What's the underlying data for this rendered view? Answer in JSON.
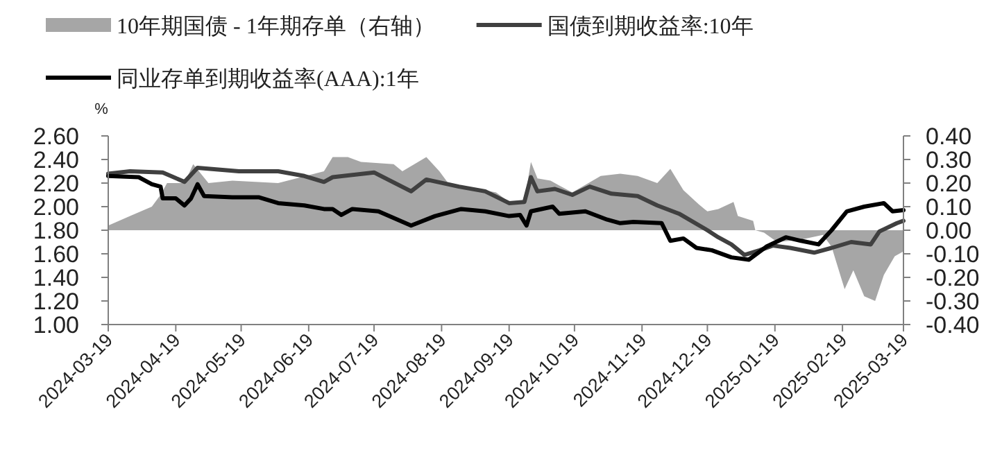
{
  "chart_data": {
    "type": "line",
    "ylabel": "%",
    "legend": "top",
    "xlim": [
      "2024-03-19",
      "2025-03-19"
    ],
    "xticks": [
      "2024-03-19",
      "2024-04-19",
      "2024-05-19",
      "2024-06-19",
      "2024-07-19",
      "2024-08-19",
      "2024-09-19",
      "2024-10-19",
      "2024-11-19",
      "2024-12-19",
      "2025-01-19",
      "2025-02-19",
      "2025-03-19"
    ],
    "ylim": [
      1.0,
      2.6
    ],
    "yticks": [
      {
        "value": 1.0,
        "label": "1.00"
      },
      {
        "value": 1.2,
        "label": "1.20"
      },
      {
        "value": 1.4,
        "label": "1.40"
      },
      {
        "value": 1.6,
        "label": "1.60"
      },
      {
        "value": 1.8,
        "label": "1.80"
      },
      {
        "value": 2.0,
        "label": "2.00"
      },
      {
        "value": 2.2,
        "label": "2.20"
      },
      {
        "value": 2.4,
        "label": "2.40"
      },
      {
        "value": 2.6,
        "label": "2.60"
      }
    ],
    "y2lim": [
      -0.4,
      0.4
    ],
    "y2ticks": [
      {
        "value": -0.4,
        "label": "-0.40"
      },
      {
        "value": -0.3,
        "label": "-0.30"
      },
      {
        "value": -0.2,
        "label": "-0.20"
      },
      {
        "value": -0.1,
        "label": "-0.10"
      },
      {
        "value": 0,
        "label": "0.00"
      },
      {
        "value": 0.1,
        "label": "0.10"
      },
      {
        "value": 0.2,
        "label": "0.20"
      },
      {
        "value": 0.3,
        "label": "0.30"
      },
      {
        "value": 0.4,
        "label": "0.40"
      }
    ],
    "series": [
      {
        "name": "10年期国债 - 1年期存单（右轴）",
        "type": "area",
        "axis": "y2",
        "color": "#a6a6a6",
        "x": [
          "2024-03-19",
          "2024-03-29",
          "2024-04-08",
          "2024-04-12",
          "2024-04-15",
          "2024-04-23",
          "2024-04-27",
          "2024-05-04",
          "2024-05-15",
          "2024-06-05",
          "2024-06-26",
          "2024-06-30",
          "2024-07-07",
          "2024-07-13",
          "2024-07-28",
          "2024-08-01",
          "2024-08-12",
          "2024-08-18",
          "2024-08-22",
          "2024-09-13",
          "2024-09-19",
          "2024-09-26",
          "2024-09-29",
          "2024-10-02",
          "2024-10-08",
          "2024-10-12",
          "2024-10-18",
          "2024-10-31",
          "2024-11-09",
          "2024-11-17",
          "2024-11-26",
          "2024-12-02",
          "2024-12-08",
          "2024-12-15",
          "2024-12-19",
          "2024-12-24",
          "2024-12-31",
          "2025-01-02",
          "2025-01-09",
          "2025-01-10",
          "2025-01-14",
          "2025-01-20",
          "2025-01-31",
          "2025-02-10",
          "2025-02-14",
          "2025-02-20",
          "2025-02-24",
          "2025-03-01",
          "2025-03-06",
          "2025-03-10",
          "2025-03-15",
          "2025-03-19"
        ],
        "values": [
          0.02,
          0.06,
          0.1,
          0.15,
          0.2,
          0.2,
          0.28,
          0.2,
          0.21,
          0.2,
          0.25,
          0.31,
          0.31,
          0.29,
          0.28,
          0.25,
          0.31,
          0.25,
          0.2,
          0.16,
          0.12,
          0.12,
          0.29,
          0.22,
          0.21,
          0.19,
          0.16,
          0.23,
          0.24,
          0.23,
          0.2,
          0.26,
          0.17,
          0.11,
          0.08,
          0.09,
          0.12,
          0.06,
          0.04,
          0.0,
          -0.01,
          -0.05,
          -0.04,
          -0.02,
          -0.07,
          -0.25,
          -0.17,
          -0.28,
          -0.3,
          -0.19,
          -0.11,
          -0.09
        ]
      },
      {
        "name": "国债到期收益率:10年",
        "color": "#404040",
        "x": [
          "2024-03-19",
          "2024-03-29",
          "2024-04-13",
          "2024-04-23",
          "2024-04-29",
          "2024-05-18",
          "2024-06-05",
          "2024-06-17",
          "2024-06-26",
          "2024-06-30",
          "2024-07-19",
          "2024-08-05",
          "2024-08-12",
          "2024-08-27",
          "2024-09-08",
          "2024-09-19",
          "2024-09-26",
          "2024-09-29",
          "2024-10-02",
          "2024-10-10",
          "2024-10-18",
          "2024-10-26",
          "2024-11-05",
          "2024-11-17",
          "2024-11-26",
          "2024-12-06",
          "2024-12-19",
          "2024-12-24",
          "2024-12-30",
          "2025-01-05",
          "2025-01-12",
          "2025-01-18",
          "2025-01-26",
          "2025-02-06",
          "2025-02-14",
          "2025-02-23",
          "2025-03-04",
          "2025-03-08",
          "2025-03-16",
          "2025-03-19"
        ],
        "values": [
          2.28,
          2.3,
          2.29,
          2.21,
          2.33,
          2.3,
          2.3,
          2.26,
          2.21,
          2.25,
          2.29,
          2.13,
          2.23,
          2.17,
          2.13,
          2.03,
          2.04,
          2.25,
          2.13,
          2.15,
          2.1,
          2.17,
          2.11,
          2.09,
          2.01,
          1.94,
          1.8,
          1.74,
          1.68,
          1.59,
          1.63,
          1.67,
          1.65,
          1.61,
          1.65,
          1.7,
          1.68,
          1.79,
          1.86,
          1.88
        ]
      },
      {
        "name": "同业存单到期收益率(AAA):1年",
        "color": "#000000",
        "x": [
          "2024-03-19",
          "2024-04-02",
          "2024-04-08",
          "2024-04-12",
          "2024-04-13",
          "2024-04-19",
          "2024-04-23",
          "2024-04-26",
          "2024-04-29",
          "2024-05-02",
          "2024-05-15",
          "2024-05-27",
          "2024-06-05",
          "2024-06-17",
          "2024-06-26",
          "2024-06-30",
          "2024-07-04",
          "2024-07-09",
          "2024-07-21",
          "2024-08-05",
          "2024-08-16",
          "2024-08-28",
          "2024-09-08",
          "2024-09-19",
          "2024-09-24",
          "2024-09-27",
          "2024-09-29",
          "2024-10-09",
          "2024-10-12",
          "2024-10-24",
          "2024-11-03",
          "2024-11-09",
          "2024-11-15",
          "2024-11-28",
          "2024-12-02",
          "2024-12-08",
          "2024-12-14",
          "2024-12-21",
          "2024-12-30",
          "2025-01-07",
          "2025-01-15",
          "2025-01-24",
          "2025-01-31",
          "2025-02-08",
          "2025-02-14",
          "2025-02-21",
          "2025-03-01",
          "2025-03-10",
          "2025-03-14",
          "2025-03-19"
        ],
        "values": [
          2.26,
          2.25,
          2.19,
          2.17,
          2.07,
          2.07,
          2.01,
          2.07,
          2.19,
          2.09,
          2.08,
          2.08,
          2.03,
          2.01,
          1.98,
          1.98,
          1.93,
          1.98,
          1.96,
          1.84,
          1.92,
          1.98,
          1.96,
          1.92,
          1.93,
          1.84,
          1.96,
          2.0,
          1.94,
          1.96,
          1.89,
          1.86,
          1.87,
          1.86,
          1.71,
          1.73,
          1.65,
          1.63,
          1.57,
          1.55,
          1.66,
          1.74,
          1.71,
          1.68,
          1.8,
          1.96,
          2.0,
          2.03,
          1.96,
          1.97
        ]
      }
    ]
  }
}
